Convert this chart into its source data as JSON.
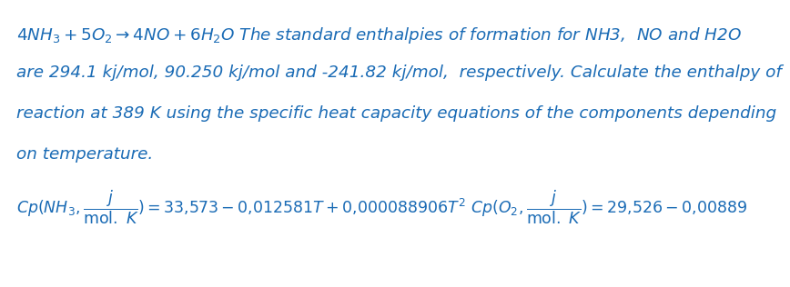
{
  "bg_color": "#ffffff",
  "text_color": "#1a6bb5",
  "fig_width": 8.68,
  "fig_height": 3.16,
  "dpi": 100,
  "line1": "4NH_3 + 5O_2 \\rightarrow 4NO + 6H_2O",
  "line1_plain": " The standard enthalpies of formation for NH3,  NO and H2O",
  "line2_plain": "are 294.1 kj/mol, 90.250 kj/mol and -241.82 kj/mol,  respectively. Calculate the enthalpy of",
  "line3_plain": "reaction at 389 K using the specific heat capacity equations of the components depending",
  "line4_plain": "on temperature.",
  "font_size_text": 13.2,
  "font_size_formula": 12.5
}
